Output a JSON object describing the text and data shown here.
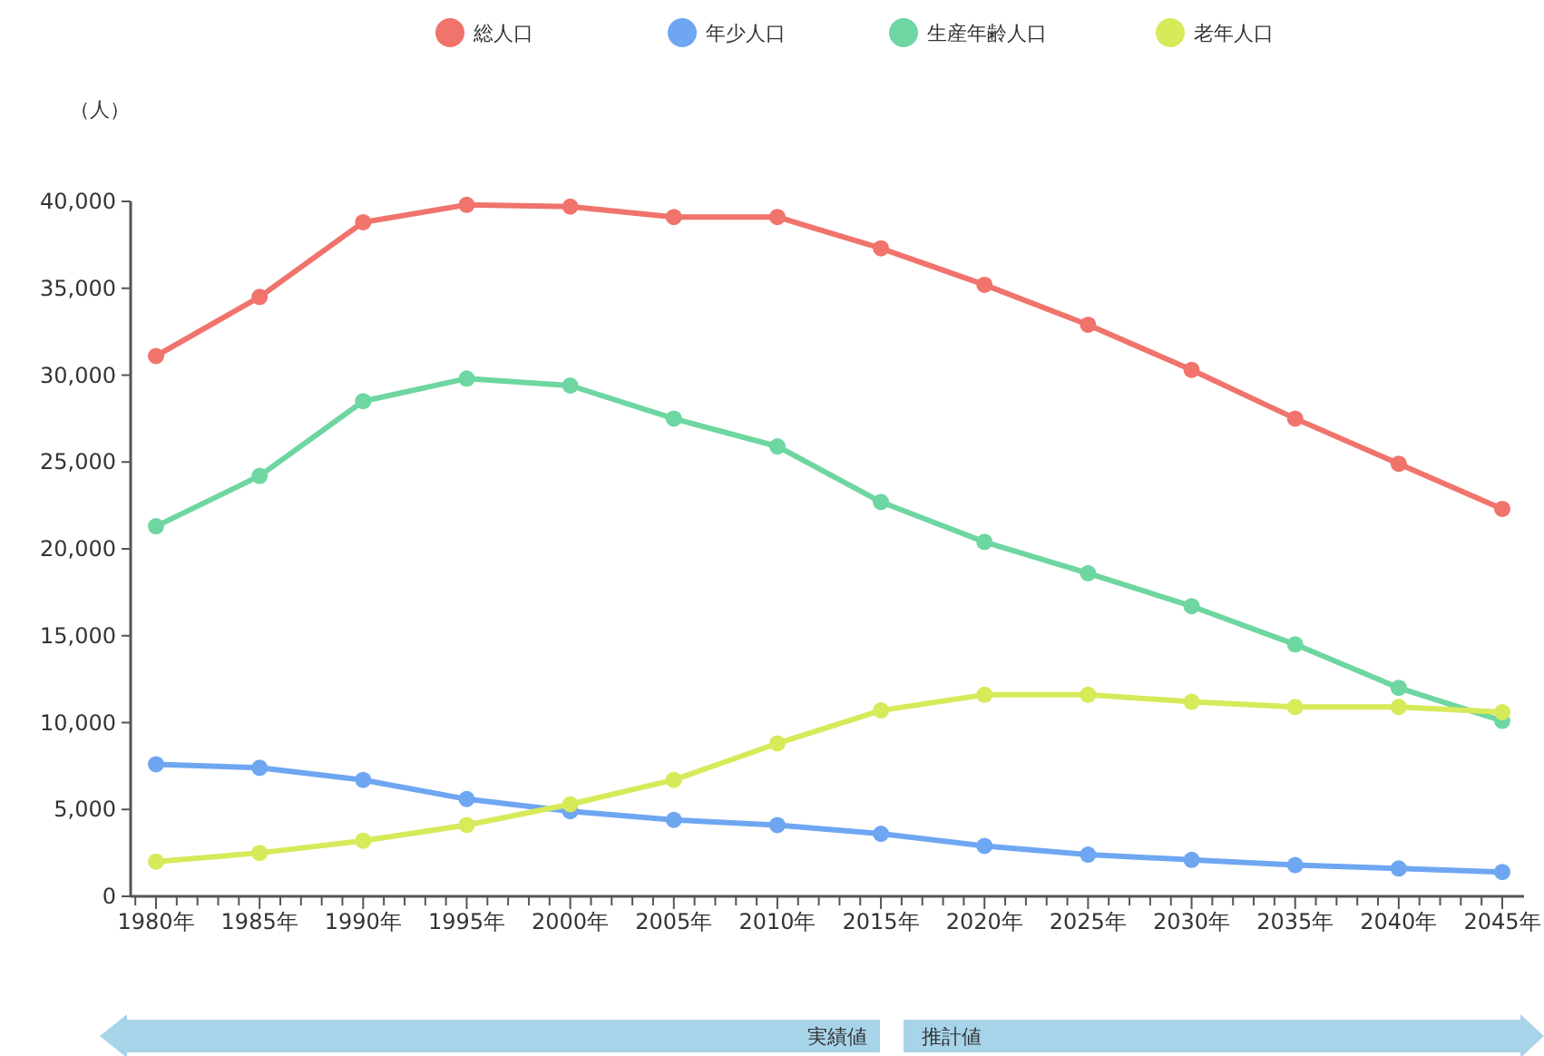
{
  "chart_data": {
    "type": "line",
    "ylabel": "（人）",
    "categories": [
      "1980年",
      "1985年",
      "1990年",
      "1995年",
      "2000年",
      "2005年",
      "2010年",
      "2015年",
      "2020年",
      "2025年",
      "2030年",
      "2035年",
      "2040年",
      "2045年"
    ],
    "series": [
      {
        "name": "総人口",
        "color": "#f0736c",
        "values": [
          31100,
          34500,
          38800,
          39800,
          39700,
          39100,
          39100,
          37300,
          35200,
          32900,
          30300,
          27500,
          24900,
          22300
        ]
      },
      {
        "name": "年少人口",
        "color": "#6ea6f2",
        "values": [
          7600,
          7400,
          6700,
          5600,
          4900,
          4400,
          4100,
          3600,
          2900,
          2400,
          2100,
          1800,
          1600,
          1400
        ]
      },
      {
        "name": "生産年齢人口",
        "color": "#6ed6a0",
        "values": [
          21300,
          24200,
          28500,
          29800,
          29400,
          27500,
          25900,
          22700,
          20400,
          18600,
          16700,
          14500,
          12000,
          10100
        ]
      },
      {
        "name": "老年人口",
        "color": "#d6ea5a",
        "values": [
          2000,
          2500,
          3200,
          4100,
          5300,
          6700,
          8800,
          10700,
          11600,
          11600,
          11200,
          10900,
          10900,
          10600
        ]
      }
    ],
    "ylim": [
      0,
      40000
    ],
    "yticks": [
      {
        "value": 0,
        "label": "0"
      },
      {
        "value": 5000,
        "label": "5,000"
      },
      {
        "value": 10000,
        "label": "10,000"
      },
      {
        "value": 15000,
        "label": "15,000"
      },
      {
        "value": 20000,
        "label": "20,000"
      },
      {
        "value": 25000,
        "label": "25,000"
      },
      {
        "value": 30000,
        "label": "30,000"
      },
      {
        "value": 35000,
        "label": "35,000"
      },
      {
        "value": 40000,
        "label": "40,000"
      }
    ],
    "grid": false,
    "legend": "top",
    "marker": "circle",
    "line_style": "solid",
    "annotations": [
      "実績値",
      "推計値"
    ]
  }
}
